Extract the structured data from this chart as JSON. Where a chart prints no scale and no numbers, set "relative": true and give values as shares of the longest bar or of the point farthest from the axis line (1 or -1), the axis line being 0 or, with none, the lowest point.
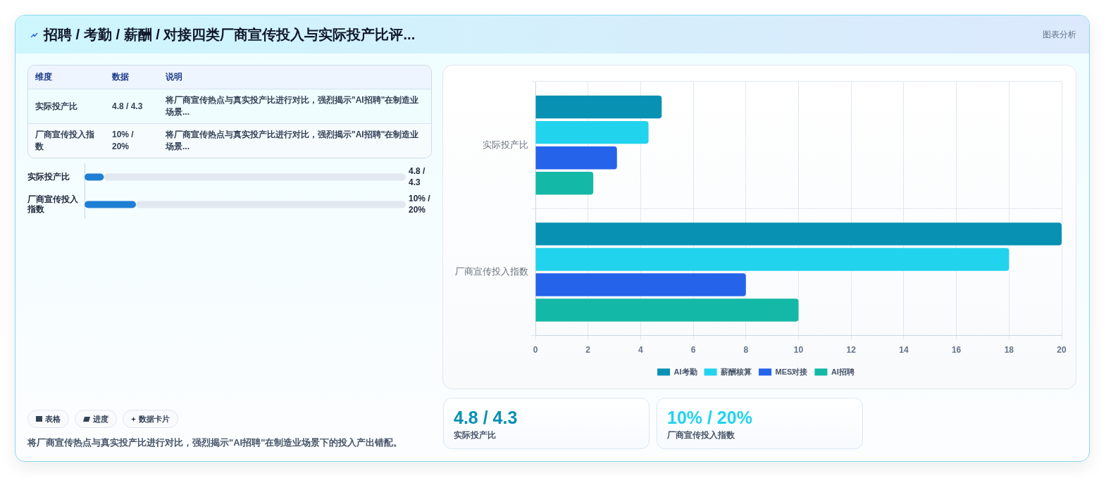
{
  "chart_data": [
    {
      "type": "other",
      "title": "招聘 / 考勤 / 薪酬 / 对接四类厂商宣传投入与实际投产比评...",
      "subtitle": "图表分析"
    },
    {
      "type": "other",
      "categories": [
        "维度",
        "数据",
        "说明"
      ],
      "annotations": [
        "实际投产比",
        "4.8 / 4.3",
        "将厂商宣传热点与真实投产比进行对比，强烈揭示\"AI招聘\"在制造业场景...",
        "厂商宣传投入指数",
        "10% / 20%",
        "将厂商宣传热点与真实投产比进行对比，强烈揭示\"AI招聘\"在制造业场景..."
      ]
    },
    {
      "type": "bar",
      "orientation": "horizontal",
      "stacked": true,
      "relative": true,
      "categories": [
        "实际投产比",
        "厂商宣传投入指数"
      ],
      "series": [
        {
          "color": "#1e7fd4",
          "values": [
            0.06,
            0.16
          ]
        },
        {
          "color": "#e2e8f0",
          "values": [
            0.94,
            0.84
          ]
        }
      ],
      "annotations": [
        "4.8 / 4.3",
        "10% / 20%"
      ]
    },
    {
      "type": "other",
      "categories": [
        "表格",
        "进度",
        "数据卡片"
      ],
      "annotations": [
        "将厂商宣传热点与真实投产比进行对比，强烈揭示\"AI招聘\"在制造业场景下的投入产出错配。"
      ]
    },
    {
      "type": "bar",
      "orientation": "horizontal",
      "categories": [
        "实际投产比",
        "厂商宣传投入指数"
      ],
      "series": [
        {
          "name": "AI考勤",
          "color": "#0891b2",
          "values": [
            4.8,
            20
          ]
        },
        {
          "name": "薪酬核算",
          "color": "#22d3ee",
          "values": [
            4.3,
            18
          ]
        },
        {
          "name": "MES对接",
          "color": "#2563eb",
          "values": [
            3.1,
            8
          ]
        },
        {
          "name": "AI招聘",
          "color": "#14b8a6",
          "values": [
            2.2,
            10
          ]
        }
      ],
      "xlim": [
        0,
        20
      ],
      "xticks": [
        0,
        2,
        4,
        6,
        8,
        10,
        12,
        14,
        16,
        18,
        20
      ],
      "grid": true,
      "legend": "bottom"
    },
    {
      "type": "other",
      "categories": [
        "实际投产比",
        "厂商宣传投入指数"
      ],
      "value_labels": [
        "4.8 / 4.3",
        "10% / 20%"
      ]
    }
  ]
}
